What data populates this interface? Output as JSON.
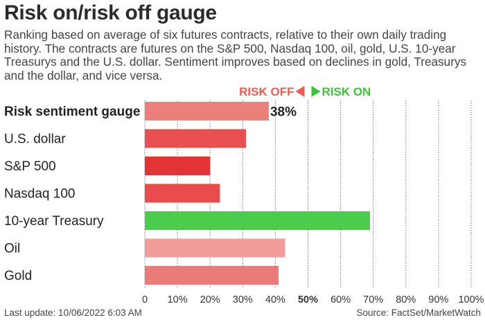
{
  "title": "Risk on/risk off gauge",
  "subtitle": "Ranking based on average of six futures contracts, relative to their own daily trading history. The contracts are futures on the S&P 500, Nasdaq 100, oil, gold, U.S. 10-year Treasurys and the U.S. dollar. Sentiment improves based on declines in gold, Treasurys and the dollar, and vice versa.",
  "legend": {
    "risk_off": "RISK OFF",
    "risk_on": "RISK ON",
    "risk_off_color": "#f05a4f",
    "risk_on_color": "#3cc43c"
  },
  "footer": {
    "last_update": "Last update: 10/06/2022 6:03 AM",
    "source": "Source: FactSet/MarketWatch"
  },
  "chart_data": {
    "type": "bar",
    "orientation": "horizontal",
    "categories": [
      "Risk sentiment gauge",
      "U.S. dollar",
      "S&P 500",
      "Nasdaq 100",
      "10-year Treasury",
      "Oil",
      "Gold"
    ],
    "values": [
      38,
      31,
      20,
      23,
      69,
      43,
      41
    ],
    "colors": [
      "#ec7f7a",
      "#e94f51",
      "#e23335",
      "#ea4b4c",
      "#4ccc4c",
      "#f29d9c",
      "#eb7b79"
    ],
    "value_labels": [
      "38%",
      "",
      "",
      "",
      "",
      "",
      ""
    ],
    "bold_categories": [
      "Risk sentiment gauge"
    ],
    "xlim": [
      0,
      100
    ],
    "xticks": [
      0,
      10,
      20,
      30,
      40,
      50,
      60,
      70,
      80,
      90,
      100
    ],
    "xtick_labels": [
      "0",
      "10%",
      "20%",
      "30%",
      "40%",
      "50%",
      "60%",
      "70%",
      "80%",
      "90%",
      "100%"
    ],
    "bold_tick": "50%",
    "grid": true,
    "xlabel": "",
    "ylabel": ""
  }
}
